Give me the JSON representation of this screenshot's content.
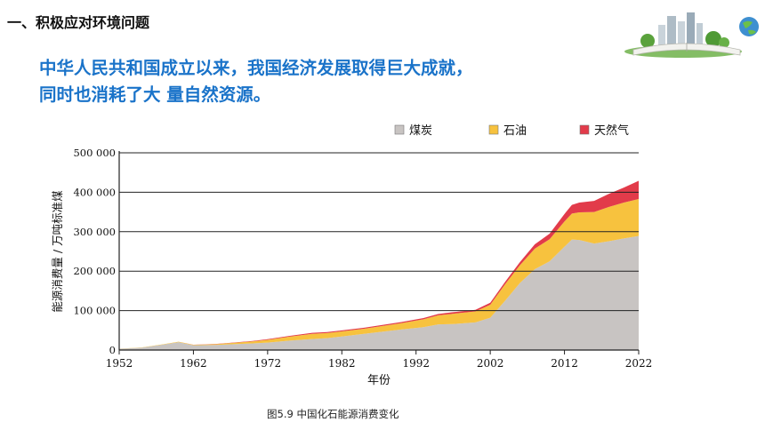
{
  "header": {
    "section_title": "一、积极应对环境问题",
    "headline_line1": "中华人民共和国成立以来，我国经济发展取得巨大成就，",
    "headline_line2": "同时也消耗了大 量自然资源。"
  },
  "colors": {
    "headline": "#1a73c9",
    "coal": "#c8c4c2",
    "oil": "#f7c23e",
    "gas": "#e23b4a"
  },
  "chart_data": {
    "type": "area",
    "stacked": true,
    "caption": "图5.9    中国化石能源消费变化",
    "xlabel": "年份",
    "ylabel": "能源消费量 / 万吨标准煤",
    "xlim": [
      1952,
      2022
    ],
    "ylim": [
      0,
      500000
    ],
    "x_ticks": [
      "1952",
      "1962",
      "1972",
      "1982",
      "1992",
      "2002",
      "2012",
      "2022"
    ],
    "y_ticks": [
      "0",
      "100 000",
      "200 000",
      "300 000",
      "400 000",
      "500 000"
    ],
    "legend_position": "top",
    "x": [
      1952,
      1955,
      1958,
      1960,
      1962,
      1965,
      1970,
      1972,
      1975,
      1978,
      1980,
      1985,
      1990,
      1993,
      1995,
      1997,
      2000,
      2002,
      2004,
      2006,
      2008,
      2010,
      2012,
      2013,
      2014,
      2016,
      2018,
      2020,
      2022
    ],
    "series": [
      {
        "name": "煤炭",
        "values": [
          3000,
          6000,
          14000,
          20000,
          12000,
          13000,
          17000,
          19000,
          24000,
          28000,
          30000,
          41000,
          52000,
          58000,
          65000,
          66000,
          70000,
          82000,
          125000,
          170000,
          205000,
          225000,
          262000,
          280000,
          279000,
          270000,
          276000,
          283000,
          289000
        ]
      },
      {
        "name": "石油",
        "values": [
          300,
          500,
          800,
          1000,
          1200,
          2000,
          5000,
          7000,
          10000,
          13000,
          13000,
          13000,
          16000,
          20000,
          23000,
          26000,
          28000,
          33000,
          42000,
          45000,
          52000,
          56000,
          64000,
          66000,
          70000,
          80000,
          87000,
          91000,
          94000
        ]
      },
      {
        "name": "天然气",
        "values": [
          0,
          0,
          100,
          200,
          300,
          500,
          1000,
          1500,
          2000,
          2500,
          2500,
          2500,
          3000,
          3000,
          3500,
          4000,
          4000,
          5000,
          6000,
          8000,
          11000,
          14000,
          19000,
          22000,
          25000,
          28000,
          33000,
          38000,
          46000
        ]
      }
    ]
  }
}
